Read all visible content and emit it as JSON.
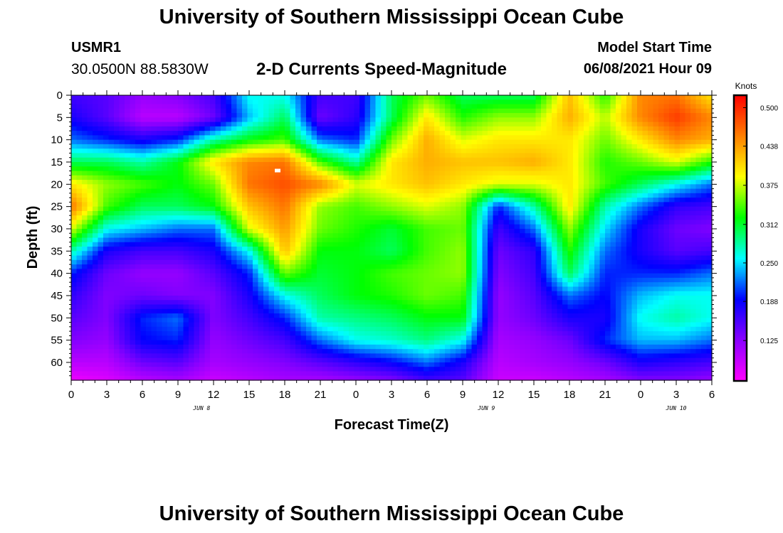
{
  "header": {
    "title": "University of Southern Mississippi Ocean Cube",
    "station_id": "USMR1",
    "station_coords": "30.0500N  88.5830W",
    "chart_title": "2-D Currents Speed-Magnitude",
    "model_start_label": "Model Start Time",
    "model_start_value": "06/08/2021 Hour 09"
  },
  "footer": {
    "title": "University of Southern Mississippi Ocean Cube"
  },
  "colors": {
    "colormap": [
      "#ff00ff",
      "#8a00ff",
      "#0000ff",
      "#00ffff",
      "#00ff00",
      "#ffff00",
      "#ff7f00",
      "#ff0000"
    ],
    "marker": "#ffffff"
  },
  "chart_data": {
    "type": "heatmap",
    "title": "2-D Currents Speed-Magnitude",
    "xlabel": "Forecast Time(Z)",
    "ylabel": "Depth (ft)",
    "x_tick_labels": [
      "0",
      "3",
      "6",
      "9",
      "12",
      "15",
      "18",
      "21",
      "0",
      "3",
      "6",
      "9",
      "12",
      "15",
      "18",
      "21",
      "0",
      "3",
      "6"
    ],
    "x_date_labels": [
      {
        "label": "JUN 8",
        "hour_index": 11
      },
      {
        "label": "JUN 9",
        "hour_index": 35
      },
      {
        "label": "JUN 10",
        "hour_index": 51
      }
    ],
    "y_tick_labels": [
      "0",
      "5",
      "10",
      "15",
      "20",
      "25",
      "30",
      "35",
      "40",
      "45",
      "50",
      "55",
      "60"
    ],
    "ylim": [
      0,
      64
    ],
    "xlim_hours": [
      0,
      54
    ],
    "colorbar": {
      "title": "Knots",
      "tick_labels": [
        "0.500",
        "0.438",
        "0.375",
        "0.312",
        "0.250",
        "0.188",
        "0.125"
      ],
      "range": [
        0.06,
        0.52
      ]
    },
    "depths_ft": [
      0,
      5,
      10,
      15,
      20,
      25,
      30,
      35,
      40,
      45,
      50,
      55,
      60,
      64
    ],
    "time_hours": [
      0,
      3,
      6,
      9,
      12,
      15,
      18,
      21,
      24,
      27,
      30,
      33,
      36,
      39,
      42,
      45,
      48,
      51,
      54
    ],
    "speed_knots": [
      [
        0.16,
        0.15,
        0.12,
        0.13,
        0.16,
        0.26,
        0.26,
        0.16,
        0.16,
        0.3,
        0.35,
        0.3,
        0.3,
        0.3,
        0.42,
        0.33,
        0.45,
        0.46,
        0.4
      ],
      [
        0.18,
        0.15,
        0.1,
        0.1,
        0.14,
        0.24,
        0.3,
        0.14,
        0.17,
        0.3,
        0.4,
        0.33,
        0.36,
        0.36,
        0.43,
        0.37,
        0.45,
        0.49,
        0.45
      ],
      [
        0.22,
        0.2,
        0.18,
        0.2,
        0.28,
        0.32,
        0.34,
        0.22,
        0.2,
        0.35,
        0.43,
        0.38,
        0.4,
        0.4,
        0.4,
        0.35,
        0.4,
        0.45,
        0.43
      ],
      [
        0.3,
        0.3,
        0.28,
        0.32,
        0.4,
        0.45,
        0.46,
        0.34,
        0.28,
        0.4,
        0.43,
        0.42,
        0.42,
        0.43,
        0.4,
        0.33,
        0.35,
        0.38,
        0.33
      ],
      [
        0.4,
        0.36,
        0.34,
        0.32,
        0.35,
        0.46,
        0.48,
        0.45,
        0.38,
        0.4,
        0.42,
        0.4,
        0.38,
        0.38,
        0.4,
        0.34,
        0.3,
        0.26,
        0.22
      ],
      [
        0.46,
        0.34,
        0.3,
        0.3,
        0.32,
        0.42,
        0.46,
        0.36,
        0.34,
        0.36,
        0.38,
        0.36,
        0.2,
        0.28,
        0.4,
        0.28,
        0.22,
        0.17,
        0.16
      ],
      [
        0.38,
        0.26,
        0.24,
        0.22,
        0.22,
        0.38,
        0.44,
        0.35,
        0.33,
        0.31,
        0.34,
        0.35,
        0.16,
        0.22,
        0.36,
        0.25,
        0.18,
        0.14,
        0.13
      ],
      [
        0.28,
        0.18,
        0.16,
        0.16,
        0.18,
        0.26,
        0.42,
        0.32,
        0.32,
        0.3,
        0.34,
        0.36,
        0.14,
        0.17,
        0.33,
        0.22,
        0.18,
        0.15,
        0.16
      ],
      [
        0.2,
        0.14,
        0.12,
        0.12,
        0.15,
        0.2,
        0.35,
        0.31,
        0.32,
        0.34,
        0.35,
        0.36,
        0.13,
        0.16,
        0.3,
        0.2,
        0.2,
        0.2,
        0.22
      ],
      [
        0.17,
        0.13,
        0.14,
        0.13,
        0.13,
        0.18,
        0.26,
        0.3,
        0.32,
        0.33,
        0.35,
        0.34,
        0.12,
        0.15,
        0.22,
        0.19,
        0.24,
        0.26,
        0.26
      ],
      [
        0.15,
        0.13,
        0.2,
        0.22,
        0.13,
        0.16,
        0.2,
        0.28,
        0.29,
        0.3,
        0.32,
        0.32,
        0.12,
        0.14,
        0.18,
        0.18,
        0.26,
        0.28,
        0.26
      ],
      [
        0.13,
        0.12,
        0.19,
        0.2,
        0.12,
        0.14,
        0.16,
        0.22,
        0.26,
        0.27,
        0.29,
        0.26,
        0.11,
        0.12,
        0.14,
        0.2,
        0.24,
        0.24,
        0.22
      ],
      [
        0.1,
        0.1,
        0.14,
        0.15,
        0.11,
        0.12,
        0.13,
        0.15,
        0.17,
        0.19,
        0.22,
        0.18,
        0.1,
        0.11,
        0.12,
        0.14,
        0.18,
        0.17,
        0.16
      ],
      [
        0.07,
        0.08,
        0.1,
        0.11,
        0.09,
        0.1,
        0.11,
        0.11,
        0.12,
        0.13,
        0.16,
        0.15,
        0.09,
        0.09,
        0.1,
        0.11,
        0.13,
        0.13,
        0.12
      ]
    ],
    "marker": {
      "hour": 17.4,
      "depth_ft": 17
    }
  }
}
